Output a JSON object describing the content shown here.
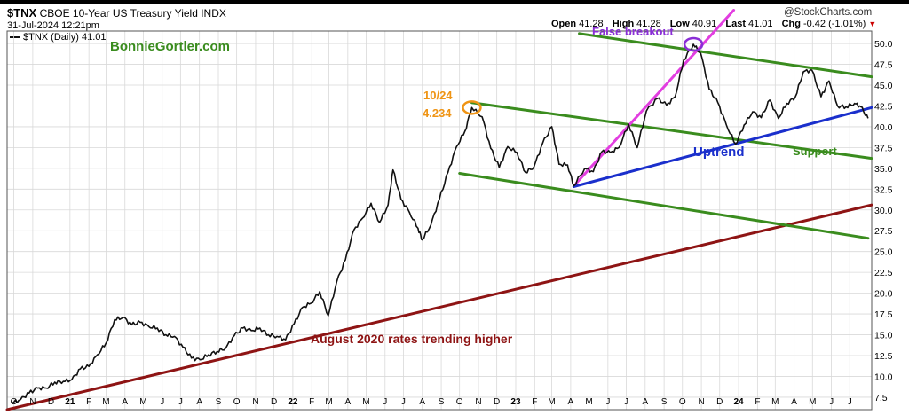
{
  "header": {
    "symbol": "$TNX",
    "name": "CBOE 10-Year US Treasury Yield INDX",
    "date": "31-Jul-2024 12:21pm",
    "legend": "$TNX (Daily) 41.01",
    "brand": "@StockCharts.com",
    "ohlc": [
      {
        "label": "Open",
        "value": "41.28"
      },
      {
        "label": "High",
        "value": "41.28"
      },
      {
        "label": "Low",
        "value": "40.91"
      },
      {
        "label": "Last",
        "value": "41.01"
      },
      {
        "label": "Chg",
        "value": "-0.42 (-1.01%)"
      }
    ],
    "chg_marker": "▼"
  },
  "colors": {
    "price": "#111111",
    "green_channel": "#3a8c1e",
    "magenta": "#e23ee0",
    "uptrend": "#1a2fcc",
    "long_trend": "#8e1414",
    "orange": "#ef9414",
    "purple": "#8a2ed6",
    "brand_green": "#3a8c1e",
    "grid": "#d9d9d9"
  },
  "chart_data": {
    "type": "line",
    "title": "$TNX CBOE 10-Year US Treasury Yield INDX",
    "series": [
      {
        "name": "$TNX (Daily)",
        "points": [
          [
            "2020-09-28",
            6.8
          ],
          [
            "2020-10-12",
            7.2
          ],
          [
            "2020-10-26",
            8.0
          ],
          [
            "2020-11-09",
            8.6
          ],
          [
            "2020-11-23",
            8.6
          ],
          [
            "2020-12-07",
            9.3
          ],
          [
            "2020-12-21",
            9.4
          ],
          [
            "2021-01-04",
            9.6
          ],
          [
            "2021-01-18",
            10.9
          ],
          [
            "2021-02-01",
            11.2
          ],
          [
            "2021-02-15",
            12.6
          ],
          [
            "2021-03-01",
            14.0
          ],
          [
            "2021-03-15",
            16.8
          ],
          [
            "2021-03-29",
            17.1
          ],
          [
            "2021-04-12",
            16.2
          ],
          [
            "2021-04-26",
            16.5
          ],
          [
            "2021-05-10",
            16.0
          ],
          [
            "2021-05-24",
            15.8
          ],
          [
            "2021-06-07",
            15.0
          ],
          [
            "2021-06-21",
            14.8
          ],
          [
            "2021-07-05",
            13.5
          ],
          [
            "2021-07-19",
            12.2
          ],
          [
            "2021-08-02",
            12.0
          ],
          [
            "2021-08-16",
            12.6
          ],
          [
            "2021-08-30",
            13.0
          ],
          [
            "2021-09-13",
            13.4
          ],
          [
            "2021-09-27",
            14.9
          ],
          [
            "2021-10-11",
            15.8
          ],
          [
            "2021-10-25",
            15.5
          ],
          [
            "2021-11-08",
            15.8
          ],
          [
            "2021-11-22",
            15.0
          ],
          [
            "2021-12-06",
            14.8
          ],
          [
            "2021-12-20",
            14.4
          ],
          [
            "2022-01-03",
            16.3
          ],
          [
            "2022-01-17",
            18.3
          ],
          [
            "2022-01-31",
            18.8
          ],
          [
            "2022-02-14",
            20.2
          ],
          [
            "2022-02-28",
            17.3
          ],
          [
            "2022-03-14",
            21.4
          ],
          [
            "2022-03-28",
            24.0
          ],
          [
            "2022-04-11",
            27.6
          ],
          [
            "2022-04-25",
            29.0
          ],
          [
            "2022-05-09",
            30.8
          ],
          [
            "2022-05-23",
            28.5
          ],
          [
            "2022-06-06",
            30.6
          ],
          [
            "2022-06-14",
            34.8
          ],
          [
            "2022-06-27",
            31.3
          ],
          [
            "2022-07-11",
            29.7
          ],
          [
            "2022-07-25",
            27.8
          ],
          [
            "2022-08-01",
            26.4
          ],
          [
            "2022-08-15",
            28.2
          ],
          [
            "2022-08-29",
            31.3
          ],
          [
            "2022-09-12",
            34.5
          ],
          [
            "2022-09-26",
            37.6
          ],
          [
            "2022-10-10",
            39.5
          ],
          [
            "2022-10-21",
            42.3
          ],
          [
            "2022-11-07",
            41.2
          ],
          [
            "2022-11-21",
            37.4
          ],
          [
            "2022-12-05",
            35.1
          ],
          [
            "2022-12-19",
            37.6
          ],
          [
            "2023-01-03",
            36.9
          ],
          [
            "2023-01-17",
            34.5
          ],
          [
            "2023-01-31",
            35.2
          ],
          [
            "2023-02-14",
            38.0
          ],
          [
            "2023-03-01",
            40.0
          ],
          [
            "2023-03-13",
            35.5
          ],
          [
            "2023-03-27",
            35.4
          ],
          [
            "2023-04-06",
            32.9
          ],
          [
            "2023-04-24",
            35.0
          ],
          [
            "2023-05-08",
            34.6
          ],
          [
            "2023-05-22",
            37.0
          ],
          [
            "2023-06-05",
            36.9
          ],
          [
            "2023-06-19",
            37.5
          ],
          [
            "2023-07-05",
            40.3
          ],
          [
            "2023-07-19",
            37.5
          ],
          [
            "2023-08-03",
            41.9
          ],
          [
            "2023-08-21",
            43.4
          ],
          [
            "2023-09-05",
            42.6
          ],
          [
            "2023-09-19",
            43.6
          ],
          [
            "2023-10-03",
            48.0
          ],
          [
            "2023-10-19",
            49.9
          ],
          [
            "2023-10-31",
            48.8
          ],
          [
            "2023-11-14",
            44.5
          ],
          [
            "2023-11-28",
            42.9
          ],
          [
            "2023-12-12",
            40.2
          ],
          [
            "2023-12-27",
            37.9
          ],
          [
            "2024-01-10",
            40.2
          ],
          [
            "2024-01-24",
            41.8
          ],
          [
            "2024-02-07",
            41.1
          ],
          [
            "2024-02-21",
            43.2
          ],
          [
            "2024-03-06",
            41.0
          ],
          [
            "2024-03-20",
            42.8
          ],
          [
            "2024-04-03",
            43.6
          ],
          [
            "2024-04-16",
            46.6
          ],
          [
            "2024-04-30",
            46.8
          ],
          [
            "2024-05-15",
            43.6
          ],
          [
            "2024-05-28",
            45.5
          ],
          [
            "2024-06-11",
            42.5
          ],
          [
            "2024-06-25",
            42.4
          ],
          [
            "2024-07-09",
            42.8
          ],
          [
            "2024-07-19",
            42.4
          ],
          [
            "2024-07-31",
            41.01
          ]
        ]
      }
    ],
    "xlim": [
      "2020-09-20",
      "2024-08-06"
    ],
    "ylim": [
      6.0,
      51.5
    ],
    "y_ticks": [
      7.5,
      10.0,
      12.5,
      15.0,
      17.5,
      20.0,
      22.5,
      25.0,
      27.5,
      30.0,
      32.5,
      35.0,
      37.5,
      40.0,
      42.5,
      45.0,
      47.5,
      50.0
    ],
    "x_ticks": [
      {
        "date": "2020-10-01",
        "label": "O"
      },
      {
        "date": "2020-11-01",
        "label": "N"
      },
      {
        "date": "2020-12-01",
        "label": "D"
      },
      {
        "date": "2021-01-01",
        "label": "21"
      },
      {
        "date": "2021-02-01",
        "label": "F"
      },
      {
        "date": "2021-03-01",
        "label": "M"
      },
      {
        "date": "2021-04-01",
        "label": "A"
      },
      {
        "date": "2021-05-01",
        "label": "M"
      },
      {
        "date": "2021-06-01",
        "label": "J"
      },
      {
        "date": "2021-07-01",
        "label": "J"
      },
      {
        "date": "2021-08-01",
        "label": "A"
      },
      {
        "date": "2021-09-01",
        "label": "S"
      },
      {
        "date": "2021-10-01",
        "label": "O"
      },
      {
        "date": "2021-11-01",
        "label": "N"
      },
      {
        "date": "2021-12-01",
        "label": "D"
      },
      {
        "date": "2022-01-01",
        "label": "22"
      },
      {
        "date": "2022-02-01",
        "label": "F"
      },
      {
        "date": "2022-03-01",
        "label": "M"
      },
      {
        "date": "2022-04-01",
        "label": "A"
      },
      {
        "date": "2022-05-01",
        "label": "M"
      },
      {
        "date": "2022-06-01",
        "label": "J"
      },
      {
        "date": "2022-07-01",
        "label": "J"
      },
      {
        "date": "2022-08-01",
        "label": "A"
      },
      {
        "date": "2022-09-01",
        "label": "S"
      },
      {
        "date": "2022-10-01",
        "label": "O"
      },
      {
        "date": "2022-11-01",
        "label": "N"
      },
      {
        "date": "2022-12-01",
        "label": "D"
      },
      {
        "date": "2023-01-01",
        "label": "23"
      },
      {
        "date": "2023-02-01",
        "label": "F"
      },
      {
        "date": "2023-03-01",
        "label": "M"
      },
      {
        "date": "2023-04-01",
        "label": "A"
      },
      {
        "date": "2023-05-01",
        "label": "M"
      },
      {
        "date": "2023-06-01",
        "label": "J"
      },
      {
        "date": "2023-07-01",
        "label": "J"
      },
      {
        "date": "2023-08-01",
        "label": "A"
      },
      {
        "date": "2023-09-01",
        "label": "S"
      },
      {
        "date": "2023-10-01",
        "label": "O"
      },
      {
        "date": "2023-11-01",
        "label": "N"
      },
      {
        "date": "2023-12-01",
        "label": "D"
      },
      {
        "date": "2024-01-01",
        "label": "24"
      },
      {
        "date": "2024-02-01",
        "label": "F"
      },
      {
        "date": "2024-03-01",
        "label": "M"
      },
      {
        "date": "2024-04-01",
        "label": "A"
      },
      {
        "date": "2024-05-01",
        "label": "M"
      },
      {
        "date": "2024-06-01",
        "label": "J"
      },
      {
        "date": "2024-07-01",
        "label": "J"
      }
    ],
    "grid": true,
    "trendlines": [
      {
        "name": "long_trend",
        "color": "#8e1414",
        "from": [
          "2020-09-20",
          6.0
        ],
        "to": [
          "2024-08-06",
          30.6
        ]
      },
      {
        "name": "channel_upper",
        "color": "#3a8c1e",
        "from": [
          "2022-10-21",
          42.9
        ],
        "to": [
          "2024-08-06",
          36.2
        ]
      },
      {
        "name": "channel_lower",
        "color": "#3a8c1e",
        "from": [
          "2022-10-01",
          34.4
        ],
        "to": [
          "2024-07-31",
          26.6
        ]
      },
      {
        "name": "channel_top",
        "color": "#3a8c1e",
        "from": [
          "2023-04-15",
          51.2
        ],
        "to": [
          "2024-08-06",
          46.0
        ]
      },
      {
        "name": "uptrend",
        "color": "#1a2fcc",
        "from": [
          "2023-04-06",
          32.8
        ],
        "to": [
          "2024-08-06",
          42.3
        ]
      },
      {
        "name": "false_breakout_line",
        "color": "#e23ee0",
        "from": [
          "2023-04-10",
          33.2
        ],
        "to": [
          "2023-12-24",
          54.0
        ]
      }
    ],
    "markers": [
      {
        "name": "peak_marker",
        "color": "#ef9414",
        "at": [
          "2022-10-21",
          42.3
        ]
      },
      {
        "name": "false_breakout_marker",
        "color": "#8a2ed6",
        "at": [
          "2023-10-19",
          49.9
        ]
      }
    ]
  },
  "annotations": {
    "brand": "BonnieGortler.com",
    "peak_date": "10/24",
    "peak_value": "4.234",
    "false_breakout": "False breakout",
    "uptrend": "Uptrend",
    "support": "Support",
    "long_trend": "August 2020 rates trending higher"
  }
}
